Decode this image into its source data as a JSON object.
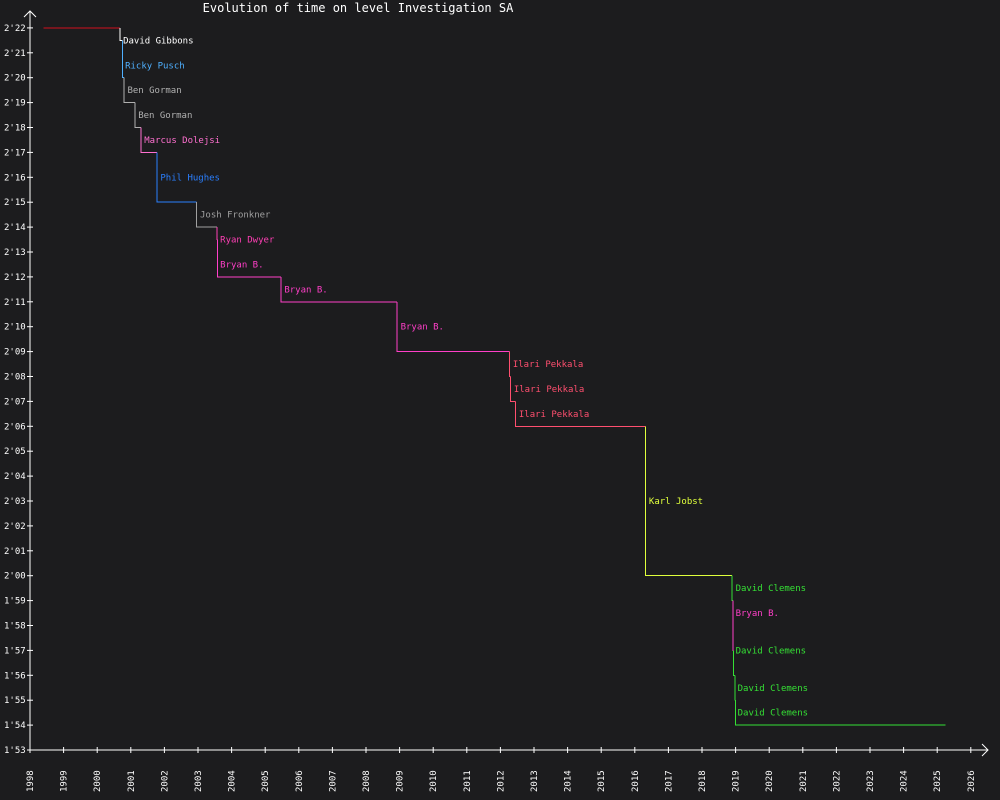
{
  "chart_data": {
    "type": "line",
    "title": "Evolution of time on level Investigation SA",
    "x_ticks": [
      "1998",
      "1999",
      "2000",
      "2001",
      "2002",
      "2003",
      "2004",
      "2005",
      "2006",
      "2007",
      "2008",
      "2009",
      "2010",
      "2011",
      "2012",
      "2013",
      "2014",
      "2015",
      "2016",
      "2017",
      "2018",
      "2019",
      "2020",
      "2021",
      "2022",
      "2023",
      "2024",
      "2025",
      "2026"
    ],
    "y_ticks": [
      "1'53",
      "1'54",
      "1'55",
      "1'56",
      "1'57",
      "1'58",
      "1'59",
      "2'00",
      "2'01",
      "2'02",
      "2'03",
      "2'04",
      "2'05",
      "2'06",
      "2'07",
      "2'08",
      "2'09",
      "2'10",
      "2'11",
      "2'12",
      "2'13",
      "2'14",
      "2'15",
      "2'16",
      "2'17",
      "2'18",
      "2'19",
      "2'20",
      "2'21",
      "2'22"
    ],
    "x_range": [
      1998,
      2026
    ],
    "y_range_seconds": [
      113,
      142
    ],
    "grid": false,
    "records": [
      {
        "holder": "",
        "date": "1998.4",
        "time_seconds": 142,
        "color": "#d0101e"
      },
      {
        "holder": "David Gibbons",
        "date": "2000.68",
        "time_seconds": 141.5,
        "color": "#ffffff"
      },
      {
        "holder": "Ricky Pusch",
        "date": "2000.75",
        "time_seconds": 140,
        "color": "#4fb0ff"
      },
      {
        "holder": "Ben Gorman",
        "date": "2000.8",
        "time_seconds": 139,
        "color": "#b0b0b0"
      },
      {
        "holder": "Ben Gorman",
        "date": "2001.12",
        "time_seconds": 138,
        "color": "#b0b0b0"
      },
      {
        "holder": "Marcus Dolejsi",
        "date": "2001.3",
        "time_seconds": 137,
        "color": "#ff70d0"
      },
      {
        "holder": "Phil Hughes",
        "date": "2001.78",
        "time_seconds": 135,
        "color": "#2a7fff"
      },
      {
        "holder": "Josh Fronkner",
        "date": "2002.96",
        "time_seconds": 134,
        "color": "#a0a0a0"
      },
      {
        "holder": "Ryan Dwyer",
        "date": "2003.56",
        "time_seconds": 133.5,
        "color": "#ff3fb5"
      },
      {
        "holder": "Bryan B.",
        "date": "2003.58",
        "time_seconds": 132,
        "color": "#ff3fc8"
      },
      {
        "holder": "Bryan B.",
        "date": "2005.47",
        "time_seconds": 131,
        "color": "#ff3fc8"
      },
      {
        "holder": "Bryan B.",
        "date": "2008.93",
        "time_seconds": 129,
        "color": "#ff3fc8"
      },
      {
        "holder": "Ilari Pekkala",
        "date": "2012.27",
        "time_seconds": 128,
        "color": "#ff4f6f"
      },
      {
        "holder": "Ilari Pekkala",
        "date": "2012.3",
        "time_seconds": 127,
        "color": "#ff4f6f"
      },
      {
        "holder": "Ilari Pekkala",
        "date": "2012.45",
        "time_seconds": 126,
        "color": "#ff4f6f"
      },
      {
        "holder": "Karl Jobst",
        "date": "2016.32",
        "time_seconds": 120,
        "color": "#e0ff3c"
      },
      {
        "holder": "David Clemens",
        "date": "2018.9",
        "time_seconds": 119,
        "color": "#35e035"
      },
      {
        "holder": "Bryan B.",
        "date": "2018.92",
        "time_seconds": 117,
        "color": "#ff3fc8"
      },
      {
        "holder": "David Clemens",
        "date": "2018.94",
        "time_seconds": 116,
        "color": "#35e035"
      },
      {
        "holder": "David Clemens",
        "date": "2018.98",
        "time_seconds": 115,
        "color": "#35e035"
      },
      {
        "holder": "David Clemens",
        "date": "2019.0",
        "time_seconds": 114,
        "color": "#35e035"
      }
    ],
    "end_date": "2025.25",
    "labels": [
      {
        "text": "David Gibbons",
        "date": 2000.77,
        "time_seconds": 141.5,
        "color": "#ffffff"
      },
      {
        "text": "Ricky Pusch",
        "date": 2000.83,
        "time_seconds": 140.5,
        "color": "#4fb0ff"
      },
      {
        "text": "Ben Gorman",
        "date": 2000.9,
        "time_seconds": 139.5,
        "color": "#b0b0b0"
      },
      {
        "text": "Ben Gorman",
        "date": 2001.22,
        "time_seconds": 138.5,
        "color": "#b0b0b0"
      },
      {
        "text": "Marcus Dolejsi",
        "date": 2001.4,
        "time_seconds": 137.5,
        "color": "#ff70d0"
      },
      {
        "text": "Phil Hughes",
        "date": 2001.88,
        "time_seconds": 136.0,
        "color": "#2a7fff"
      },
      {
        "text": "Josh Fronkner",
        "date": 2003.06,
        "time_seconds": 134.5,
        "color": "#a0a0a0"
      },
      {
        "text": "Ryan Dwyer",
        "date": 2003.66,
        "time_seconds": 133.5,
        "color": "#ff3fb5"
      },
      {
        "text": "Bryan B.",
        "date": 2003.66,
        "time_seconds": 132.5,
        "color": "#ff3fc8"
      },
      {
        "text": "Bryan B.",
        "date": 2005.57,
        "time_seconds": 131.5,
        "color": "#ff3fc8"
      },
      {
        "text": "Bryan B.",
        "date": 2009.03,
        "time_seconds": 130.0,
        "color": "#ff3fc8"
      },
      {
        "text": "Ilari Pekkala",
        "date": 2012.37,
        "time_seconds": 128.5,
        "color": "#ff4f6f"
      },
      {
        "text": "Ilari Pekkala",
        "date": 2012.4,
        "time_seconds": 127.5,
        "color": "#ff4f6f"
      },
      {
        "text": "Ilari Pekkala",
        "date": 2012.55,
        "time_seconds": 126.5,
        "color": "#ff4f6f"
      },
      {
        "text": "Karl Jobst",
        "date": 2016.42,
        "time_seconds": 123.0,
        "color": "#e0ff3c"
      },
      {
        "text": "David Clemens",
        "date": 2019.0,
        "time_seconds": 119.5,
        "color": "#35e035"
      },
      {
        "text": "Bryan B.",
        "date": 2019.0,
        "time_seconds": 118.5,
        "color": "#ff3fc8"
      },
      {
        "text": "David Clemens",
        "date": 2019.0,
        "time_seconds": 117.0,
        "color": "#35e035"
      },
      {
        "text": "David Clemens",
        "date": 2019.06,
        "time_seconds": 115.5,
        "color": "#35e035"
      },
      {
        "text": "David Clemens",
        "date": 2019.06,
        "time_seconds": 114.5,
        "color": "#35e035"
      }
    ],
    "axis_color": "#ffffff",
    "background": "#1c1c1e"
  }
}
